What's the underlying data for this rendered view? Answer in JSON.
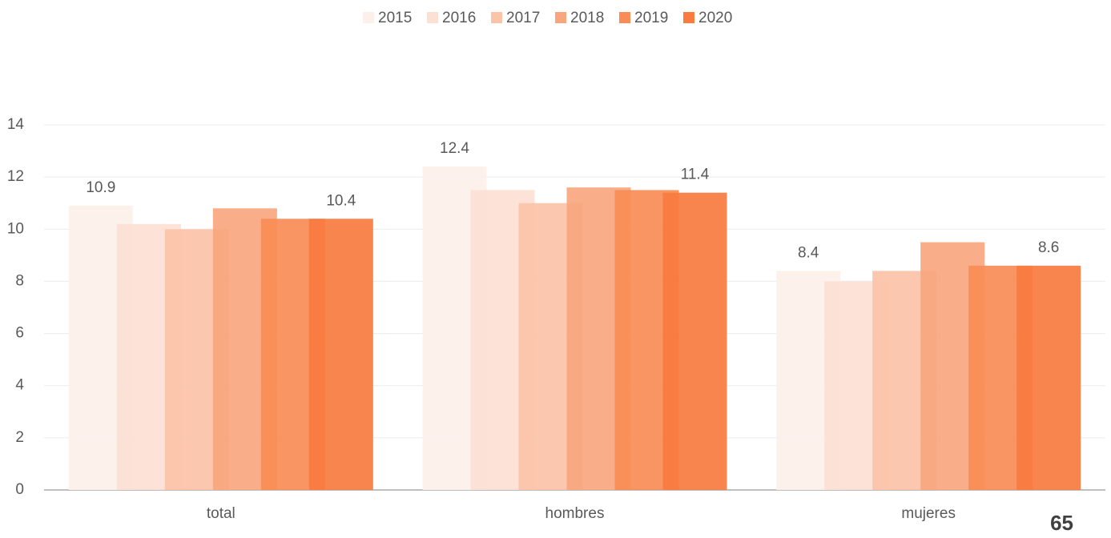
{
  "chart_data": {
    "type": "bar",
    "categories": [
      "total",
      "hombres",
      "mujeres"
    ],
    "series": [
      {
        "name": "2015",
        "color": "#fdf0ea",
        "values": [
          10.9,
          12.4,
          8.4
        ],
        "show_labels": true
      },
      {
        "name": "2016",
        "color": "#fce0d4",
        "values": [
          10.2,
          11.5,
          8.0
        ]
      },
      {
        "name": "2017",
        "color": "#fbc3a8",
        "values": [
          10.0,
          11.0,
          8.4
        ]
      },
      {
        "name": "2018",
        "color": "#f9a67e",
        "values": [
          10.8,
          11.6,
          9.5
        ]
      },
      {
        "name": "2019",
        "color": "#f98c55",
        "values": [
          10.4,
          11.5,
          8.6
        ]
      },
      {
        "name": "2020",
        "color": "#f97b3f",
        "values": [
          10.4,
          11.4,
          8.6
        ],
        "show_labels": true
      }
    ],
    "ylim": [
      0,
      14
    ],
    "yticks": [
      0,
      2,
      4,
      6,
      8,
      10,
      12,
      14
    ],
    "grid": true,
    "legend": "top"
  },
  "page_number": "65"
}
